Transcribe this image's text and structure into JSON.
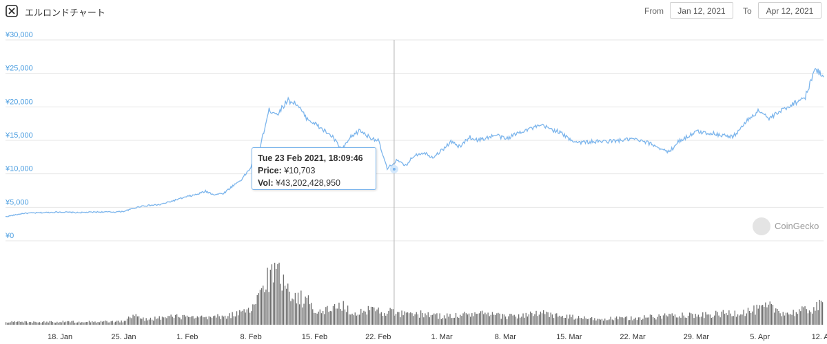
{
  "header": {
    "title": "エルロンドチャート",
    "from_label": "From",
    "from_value": "Jan 12, 2021",
    "to_label": "To",
    "to_value": "Apr 12, 2021"
  },
  "tooltip": {
    "date": "Tue 23 Feb 2021, 18:09:46",
    "price_label": "Price:",
    "price_value": "¥10,703",
    "vol_label": "Vol:",
    "vol_value": "¥43,202,428,950"
  },
  "watermark": "CoinGecko",
  "colors": {
    "price_line": "#7cb5ec",
    "volume": "#6e6e6e",
    "axis_text": "#4a9de0",
    "grid": "#e6e6e6"
  },
  "chart_data": [
    {
      "type": "line",
      "name": "price",
      "y_ticks": [
        "¥0",
        "¥5,000",
        "¥10,000",
        "¥15,000",
        "¥20,000",
        "¥25,000",
        "¥30,000"
      ],
      "ylim": [
        0,
        30000
      ],
      "x_ticks": [
        "18. Jan",
        "25. Jan",
        "1. Feb",
        "8. Feb",
        "15. Feb",
        "22. Feb",
        "1. Mar",
        "8. Mar",
        "15. Mar",
        "22. Mar",
        "29. Mar",
        "5. Apr",
        "12. Apr"
      ],
      "x_range": [
        "2021-01-12",
        "2021-04-12"
      ],
      "points": [
        [
          "2021-01-12",
          3600
        ],
        [
          "2021-01-14",
          4100
        ],
        [
          "2021-01-16",
          4200
        ],
        [
          "2021-01-18",
          4300
        ],
        [
          "2021-01-20",
          4200
        ],
        [
          "2021-01-22",
          4300
        ],
        [
          "2021-01-24",
          4300
        ],
        [
          "2021-01-25",
          4400
        ],
        [
          "2021-01-26",
          4800
        ],
        [
          "2021-01-27",
          5200
        ],
        [
          "2021-01-29",
          5400
        ],
        [
          "2021-01-31",
          6200
        ],
        [
          "2021-02-01",
          6600
        ],
        [
          "2021-02-02",
          6900
        ],
        [
          "2021-02-03",
          7400
        ],
        [
          "2021-02-04",
          6900
        ],
        [
          "2021-02-05",
          7100
        ],
        [
          "2021-02-06",
          8200
        ],
        [
          "2021-02-07",
          9200
        ],
        [
          "2021-02-08",
          11000
        ],
        [
          "2021-02-09",
          14000
        ],
        [
          "2021-02-10",
          19500
        ],
        [
          "2021-02-11",
          19000
        ],
        [
          "2021-02-12",
          21000
        ],
        [
          "2021-02-13",
          20500
        ],
        [
          "2021-02-14",
          18500
        ],
        [
          "2021-02-15",
          17500
        ],
        [
          "2021-02-16",
          16500
        ],
        [
          "2021-02-17",
          15500
        ],
        [
          "2021-02-18",
          13500
        ],
        [
          "2021-02-19",
          15500
        ],
        [
          "2021-02-20",
          16500
        ],
        [
          "2021-02-21",
          15500
        ],
        [
          "2021-02-22",
          15000
        ],
        [
          "2021-02-23",
          10703
        ],
        [
          "2021-02-24",
          12000
        ],
        [
          "2021-02-25",
          11200
        ],
        [
          "2021-02-26",
          12800
        ],
        [
          "2021-02-27",
          13200
        ],
        [
          "2021-02-28",
          12500
        ],
        [
          "2021-03-01",
          13500
        ],
        [
          "2021-03-02",
          14800
        ],
        [
          "2021-03-03",
          14000
        ],
        [
          "2021-03-04",
          15500
        ],
        [
          "2021-03-05",
          15000
        ],
        [
          "2021-03-07",
          15800
        ],
        [
          "2021-03-08",
          15200
        ],
        [
          "2021-03-10",
          16500
        ],
        [
          "2021-03-12",
          17200
        ],
        [
          "2021-03-14",
          16200
        ],
        [
          "2021-03-15",
          15200
        ],
        [
          "2021-03-16",
          14700
        ],
        [
          "2021-03-18",
          14800
        ],
        [
          "2021-03-20",
          14900
        ],
        [
          "2021-03-22",
          15200
        ],
        [
          "2021-03-24",
          14500
        ],
        [
          "2021-03-26",
          13200
        ],
        [
          "2021-03-27",
          14800
        ],
        [
          "2021-03-29",
          16300
        ],
        [
          "2021-03-31",
          16000
        ],
        [
          "2021-04-02",
          15500
        ],
        [
          "2021-04-04",
          18500
        ],
        [
          "2021-04-05",
          19500
        ],
        [
          "2021-04-06",
          18200
        ],
        [
          "2021-04-08",
          20000
        ],
        [
          "2021-04-10",
          21500
        ],
        [
          "2021-04-11",
          25500
        ],
        [
          "2021-04-12",
          24800
        ]
      ]
    },
    {
      "type": "bar",
      "name": "volume",
      "x_range": [
        "2021-01-12",
        "2021-04-12"
      ],
      "profile": [
        [
          "2021-01-12",
          0.05
        ],
        [
          "2021-01-25",
          0.06
        ],
        [
          "2021-01-26",
          0.18
        ],
        [
          "2021-01-27",
          0.1
        ],
        [
          "2021-01-31",
          0.15
        ],
        [
          "2021-02-02",
          0.12
        ],
        [
          "2021-02-05",
          0.15
        ],
        [
          "2021-02-08",
          0.25
        ],
        [
          "2021-02-09",
          0.6
        ],
        [
          "2021-02-10",
          0.9
        ],
        [
          "2021-02-11",
          0.95
        ],
        [
          "2021-02-12",
          0.7
        ],
        [
          "2021-02-13",
          0.5
        ],
        [
          "2021-02-14",
          0.45
        ],
        [
          "2021-02-15",
          0.3
        ],
        [
          "2021-02-16",
          0.25
        ],
        [
          "2021-02-18",
          0.35
        ],
        [
          "2021-02-19",
          0.2
        ],
        [
          "2021-02-21",
          0.28
        ],
        [
          "2021-02-23",
          0.24
        ],
        [
          "2021-02-25",
          0.18
        ],
        [
          "2021-02-27",
          0.2
        ],
        [
          "2021-03-01",
          0.15
        ],
        [
          "2021-03-05",
          0.2
        ],
        [
          "2021-03-08",
          0.15
        ],
        [
          "2021-03-12",
          0.2
        ],
        [
          "2021-03-15",
          0.14
        ],
        [
          "2021-03-18",
          0.1
        ],
        [
          "2021-03-22",
          0.12
        ],
        [
          "2021-03-25",
          0.15
        ],
        [
          "2021-03-27",
          0.2
        ],
        [
          "2021-03-29",
          0.16
        ],
        [
          "2021-04-01",
          0.2
        ],
        [
          "2021-04-04",
          0.25
        ],
        [
          "2021-04-06",
          0.32
        ],
        [
          "2021-04-08",
          0.2
        ],
        [
          "2021-04-10",
          0.26
        ],
        [
          "2021-04-12",
          0.36
        ]
      ]
    }
  ]
}
